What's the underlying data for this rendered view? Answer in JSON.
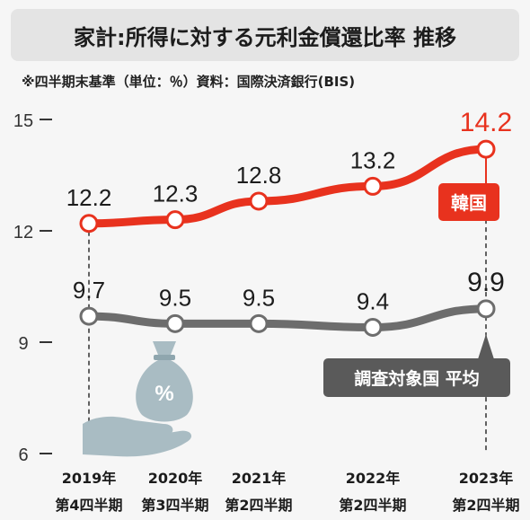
{
  "title": "家計:所得に対する元利金償還比率 推移",
  "source": "※四半期末基準（単位：％）資料：国際決済銀行(BIS)",
  "colors": {
    "korea": "#e8321e",
    "average": "#6d6d6d",
    "korea_label_bg": "#e8321e",
    "average_label_bg": "#5a5a5a",
    "icon": "#a9bcc3"
  },
  "icon": "money-bag-hand-icon",
  "chart_data": {
    "type": "line",
    "title": "家計:所得に対する元利金償還比率 推移",
    "unit": "%",
    "ylim": [
      6,
      15
    ],
    "yticks": [
      "15",
      "12",
      "9",
      "6"
    ],
    "categories": [
      {
        "year": "2019年",
        "quarter": "第4四半期"
      },
      {
        "year": "2020年",
        "quarter": "第3四半期"
      },
      {
        "year": "2021年",
        "quarter": "第2四半期"
      },
      {
        "year": "2022年",
        "quarter": "第2四半期"
      },
      {
        "year": "2023年",
        "quarter": "第2四半期"
      }
    ],
    "series": [
      {
        "name": "韓国",
        "values": [
          12.2,
          12.3,
          12.8,
          13.2,
          14.2
        ],
        "labels": [
          "12.2",
          "12.3",
          "12.8",
          "13.2",
          "14.2"
        ]
      },
      {
        "name": "調査対象国 平均",
        "values": [
          9.7,
          9.5,
          9.5,
          9.4,
          9.9
        ],
        "labels": [
          "9.7",
          "9.5",
          "9.5",
          "9.4",
          "9.9"
        ]
      }
    ]
  }
}
